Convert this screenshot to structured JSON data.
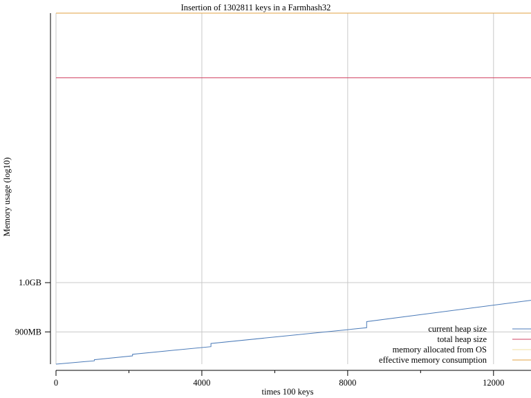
{
  "chart_data": {
    "type": "line",
    "title": "Insertion of 1302811 keys in a Farmhash32",
    "xlabel": "times 100 keys",
    "ylabel": "Memory usage (log10)",
    "log_y": true,
    "grid": true,
    "x_ticks": [
      0,
      4000,
      8000,
      12000
    ],
    "x_tick_labels": [
      "0",
      "4000",
      "8000",
      "12000"
    ],
    "xlim": [
      0,
      13028
    ],
    "y_ticks": [
      1000000000,
      900000000
    ],
    "y_tick_labels": [
      "1.0GB",
      "900MB"
    ],
    "ylim": [
      840000000,
      1780000000
    ],
    "legend_position": "bottom-right",
    "series": [
      {
        "name": "current heap size",
        "color": "#4a7ab8",
        "points": [
          [
            0,
            840000000
          ],
          [
            1050,
            846000000
          ],
          [
            2100,
            853000000
          ],
          [
            4250,
            867000000
          ],
          [
            8520,
            897000000
          ],
          [
            13028,
            940000000
          ]
        ],
        "step_after": [
          [
            1050,
            2000000
          ],
          [
            2100,
            3000000
          ],
          [
            4250,
            6000000
          ],
          [
            8520,
            12000000
          ]
        ]
      },
      {
        "name": "total heap size",
        "color": "#d04060",
        "points": [
          [
            0,
            1550000000
          ],
          [
            13028,
            1550000000
          ]
        ]
      },
      {
        "name": "memory allocated from OS",
        "color": "#f0e0a0",
        "points": [
          [
            0,
            1780000000
          ],
          [
            13028,
            1780000000
          ]
        ]
      },
      {
        "name": "effective memory consumption",
        "color": "#e0a040",
        "points": [
          [
            0,
            1780000000
          ],
          [
            13028,
            1780000000
          ]
        ]
      }
    ]
  }
}
